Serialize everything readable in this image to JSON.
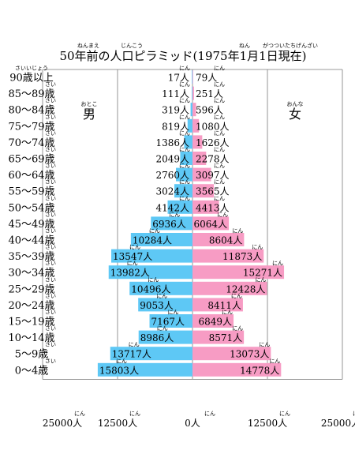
{
  "chart_data": {
    "type": "bar",
    "orientation": "horizontal",
    "title": "50年前の人口ピラミッド(1975年1月1日現在)",
    "title_ruby": [
      {
        "text": "ねんまえ",
        "over": "年前"
      },
      {
        "text": "じんこう",
        "over": "人口"
      },
      {
        "text": "ねん",
        "over": "年"
      },
      {
        "text": "がつついたちげんざい",
        "over": "月1日現在"
      }
    ],
    "categories": [
      "90歳以上",
      "85〜89歳",
      "80〜84歳",
      "75〜79歳",
      "70〜74歳",
      "65〜69歳",
      "60〜64歳",
      "55〜59歳",
      "50〜54歳",
      "45〜49歳",
      "40〜44歳",
      "35〜39歳",
      "30〜34歳",
      "25〜29歳",
      "20〜24歳",
      "15〜19歳",
      "10〜14歳",
      "5〜9歳",
      "0〜4歳"
    ],
    "category_ruby_first": "さいいじょう",
    "category_ruby": "さい",
    "series": [
      {
        "name": "男",
        "name_ruby": "おとこ",
        "color": "#5ec8f5",
        "side": "left",
        "values": [
          17,
          111,
          319,
          819,
          1386,
          2049,
          2760,
          3024,
          4142,
          6936,
          10284,
          13547,
          13982,
          10496,
          9053,
          7167,
          8986,
          13717,
          15803
        ]
      },
      {
        "name": "女",
        "name_ruby": "おんな",
        "color": "#f79cc4",
        "side": "right",
        "values": [
          79,
          251,
          596,
          1080,
          1626,
          2278,
          3097,
          3565,
          4413,
          6064,
          8604,
          11873,
          15271,
          12428,
          8411,
          6849,
          8571,
          13073,
          14778
        ]
      }
    ],
    "value_unit": "人",
    "value_unit_ruby": "にん",
    "x_ticks": [
      {
        "label": "25000人",
        "value": -25000
      },
      {
        "label": "12500人",
        "value": -12500
      },
      {
        "label": "0人",
        "value": 0
      },
      {
        "label": "12500人",
        "value": 12500
      },
      {
        "label": "25000人",
        "value": 25000
      }
    ],
    "xlim": [
      -25000,
      25000
    ],
    "grid": true
  }
}
